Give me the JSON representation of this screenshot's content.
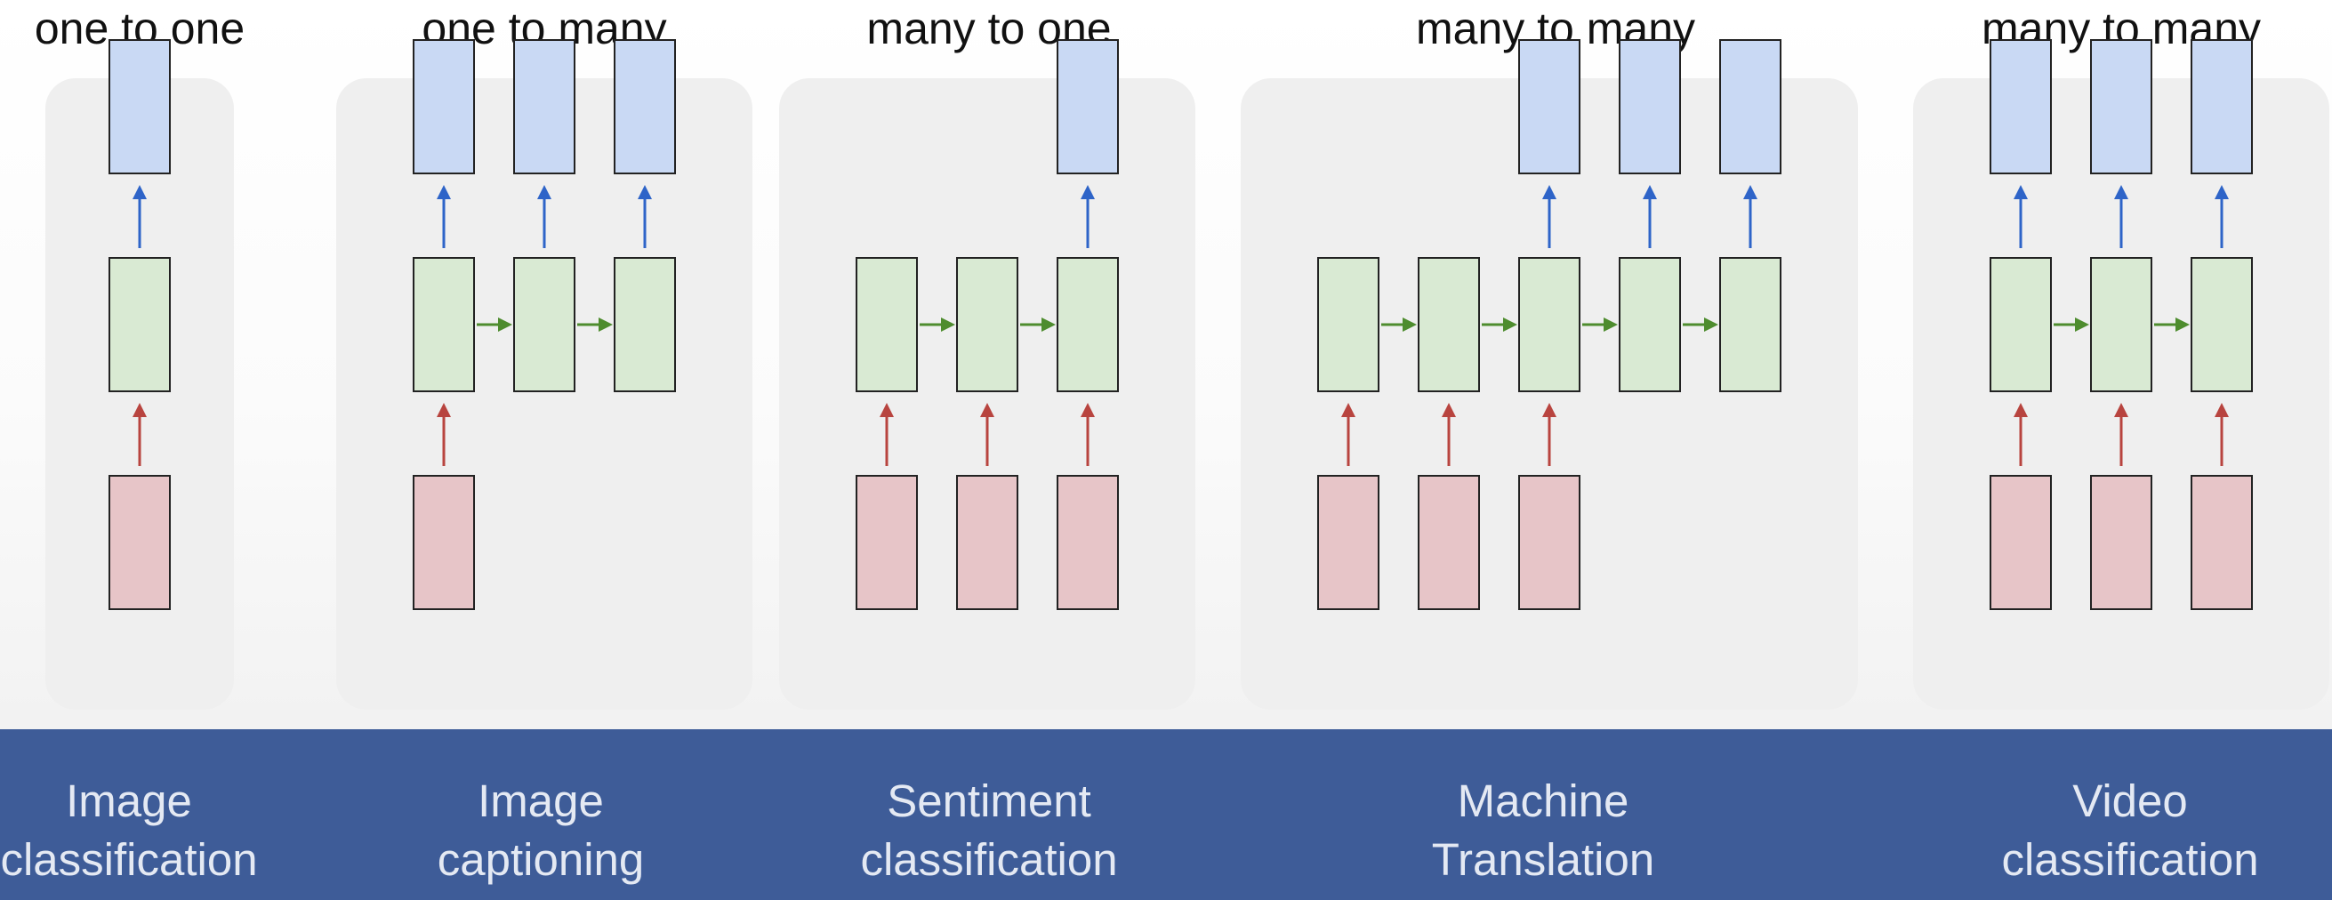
{
  "figure": {
    "colors": {
      "output_box": "#c9d9f4",
      "hidden_box": "#d9ead3",
      "input_box": "#e7c5c8",
      "output_arrow": "#2e64c8",
      "hidden_arrow": "#4e8c2e",
      "input_arrow": "#b8443f",
      "panel": "#efefef",
      "band": "#3e5c98",
      "band_text": "#e4e9f3"
    },
    "architectures": [
      {
        "title": "one to one",
        "task": "Image\nclassification",
        "steps": 1,
        "inputs": [
          0
        ],
        "outputs": [
          0
        ]
      },
      {
        "title": "one to many",
        "task": "Image\ncaptioning",
        "steps": 3,
        "inputs": [
          0
        ],
        "outputs": [
          0,
          1,
          2
        ]
      },
      {
        "title": "many to one",
        "task": "Sentiment\nclassification",
        "steps": 3,
        "inputs": [
          0,
          1,
          2
        ],
        "outputs": [
          2
        ]
      },
      {
        "title": "many to many",
        "task": "Machine\nTranslation",
        "steps": 5,
        "inputs": [
          0,
          1,
          2
        ],
        "outputs": [
          2,
          3,
          4
        ]
      },
      {
        "title": "many to many",
        "task": "Video\nclassification",
        "steps": 3,
        "inputs": [
          0,
          1,
          2
        ],
        "outputs": [
          0,
          1,
          2
        ]
      }
    ]
  }
}
